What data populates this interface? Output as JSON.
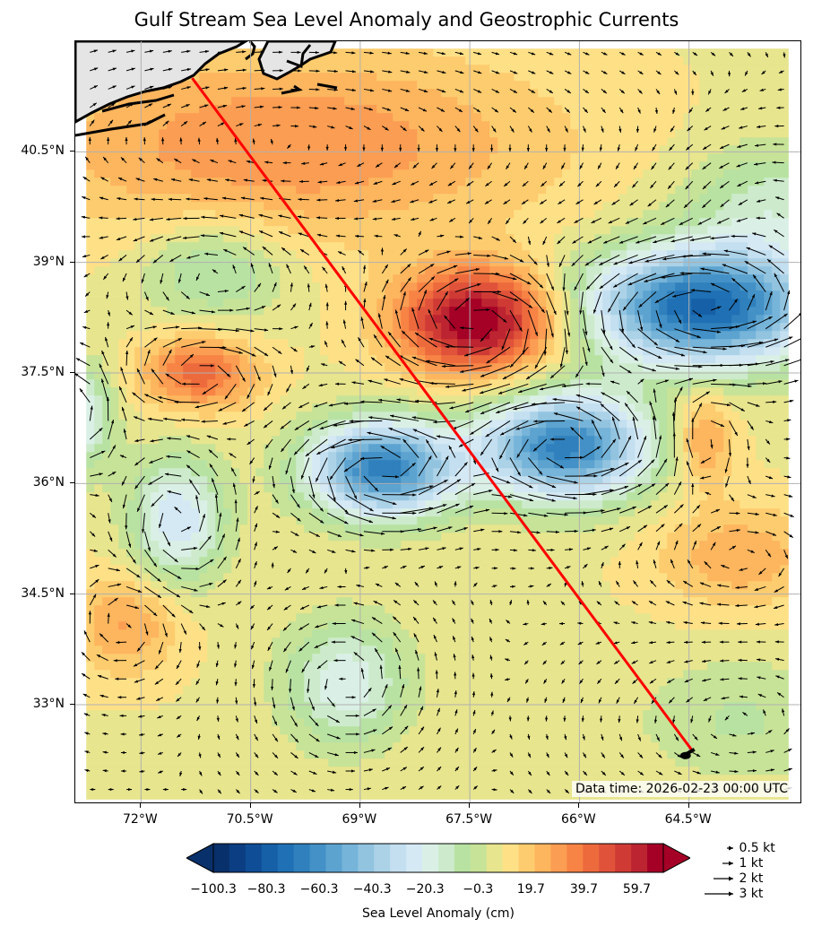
{
  "title": "Gulf Stream Sea Level Anomaly and Geostrophic Currents",
  "data_time": "Data time: 2026-02-23 00:00 UTC",
  "axes": {
    "lon_range": [
      -72.9,
      -62.95
    ],
    "lat_range": [
      31.65,
      42.0
    ],
    "lat_ticks": [
      {
        "value": 40.5,
        "label": "40.5°N"
      },
      {
        "value": 39,
        "label": "39°N"
      },
      {
        "value": 37.5,
        "label": "37.5°N"
      },
      {
        "value": 36,
        "label": "36°N"
      },
      {
        "value": 34.5,
        "label": "34.5°N"
      },
      {
        "value": 33,
        "label": "33°N"
      }
    ],
    "lon_ticks": [
      {
        "value": -72,
        "label": "72°W"
      },
      {
        "value": -70.5,
        "label": "70.5°W"
      },
      {
        "value": -69,
        "label": "69°W"
      },
      {
        "value": -67.5,
        "label": "67.5°W"
      },
      {
        "value": -66,
        "label": "66°W"
      },
      {
        "value": -64.5,
        "label": "64.5°W"
      }
    ],
    "grid": true
  },
  "colorbar": {
    "label": "Sea Level Anomaly (cm)",
    "range": [
      -100.3,
      69.7
    ],
    "ticks": [
      "−100.3",
      "−80.3",
      "−60.3",
      "−40.3",
      "−20.3",
      "−0.3",
      "19.7",
      "39.7",
      "59.7"
    ],
    "tick_values": [
      -100.3,
      -80.3,
      -60.3,
      -40.3,
      -20.3,
      -0.3,
      19.7,
      39.7,
      59.7
    ],
    "colors": [
      "#08306b",
      "#0b3e82",
      "#0f4e97",
      "#1660a8",
      "#1f70b4",
      "#2f80bc",
      "#4391c6",
      "#5ca3d0",
      "#76b4d9",
      "#92c4e0",
      "#abd2e7",
      "#c3dff0",
      "#d4e9f4",
      "#daf0e6",
      "#cdebcc",
      "#b8e2a2",
      "#c7e397",
      "#e7e58e",
      "#fee087",
      "#fdcc6e",
      "#fdb55e",
      "#fb9d52",
      "#f78345",
      "#ed6a3d",
      "#e0523a",
      "#cf3b34",
      "#bd2431",
      "#a50026"
    ]
  },
  "quiver_key": [
    {
      "label": "0.5 kt",
      "value": 0.5
    },
    {
      "label": "1 kt",
      "value": 1
    },
    {
      "label": "2 kt",
      "value": 2
    },
    {
      "label": "3 kt",
      "value": 3
    }
  ],
  "track": {
    "start": {
      "lon": -71.3,
      "lat": 41.5
    },
    "end": {
      "lon": -64.45,
      "lat": 32.37
    },
    "color": "#ff0000"
  },
  "sla_features": [
    {
      "type": "high",
      "lon": -67.4,
      "lat": 38.2,
      "amp": 65,
      "sx": 0.75,
      "sy": 0.5
    },
    {
      "type": "low",
      "lon": -64.3,
      "lat": 38.4,
      "amp": -85,
      "sx": 1.1,
      "sy": 0.55
    },
    {
      "type": "low",
      "lon": -66.2,
      "lat": 36.5,
      "amp": -75,
      "sx": 0.8,
      "sy": 0.5
    },
    {
      "type": "low",
      "lon": -68.7,
      "lat": 36.2,
      "amp": -75,
      "sx": 0.7,
      "sy": 0.45
    },
    {
      "type": "low",
      "lon": -71.5,
      "lat": 35.5,
      "amp": -35,
      "sx": 0.45,
      "sy": 0.6
    },
    {
      "type": "low",
      "lon": -71.0,
      "lat": 38.9,
      "amp": -20,
      "sx": 0.7,
      "sy": 0.5
    },
    {
      "type": "low",
      "lon": -69.2,
      "lat": 33.3,
      "amp": -28,
      "sx": 0.6,
      "sy": 0.6
    },
    {
      "type": "high",
      "lon": -71.2,
      "lat": 37.5,
      "amp": 35,
      "sx": 0.55,
      "sy": 0.35
    },
    {
      "type": "high",
      "lon": -70.0,
      "lat": 40.6,
      "amp": 25,
      "sx": 2.5,
      "sy": 0.9
    },
    {
      "type": "high",
      "lon": -72.2,
      "lat": 34.1,
      "amp": 20,
      "sx": 0.5,
      "sy": 0.5
    },
    {
      "type": "high",
      "lon": -64.3,
      "lat": 36.6,
      "amp": 22,
      "sx": 0.3,
      "sy": 0.45
    },
    {
      "type": "high",
      "lon": -63.8,
      "lat": 35.0,
      "amp": 18,
      "sx": 0.8,
      "sy": 0.5
    },
    {
      "type": "low",
      "lon": -63.3,
      "lat": 39.8,
      "amp": -20,
      "sx": 0.9,
      "sy": 0.6
    },
    {
      "type": "low",
      "lon": -72.8,
      "lat": 36.9,
      "amp": -30,
      "sx": 0.3,
      "sy": 0.5
    },
    {
      "type": "low",
      "lon": -63.8,
      "lat": 32.8,
      "amp": -12,
      "sx": 1.0,
      "sy": 0.6
    }
  ]
}
